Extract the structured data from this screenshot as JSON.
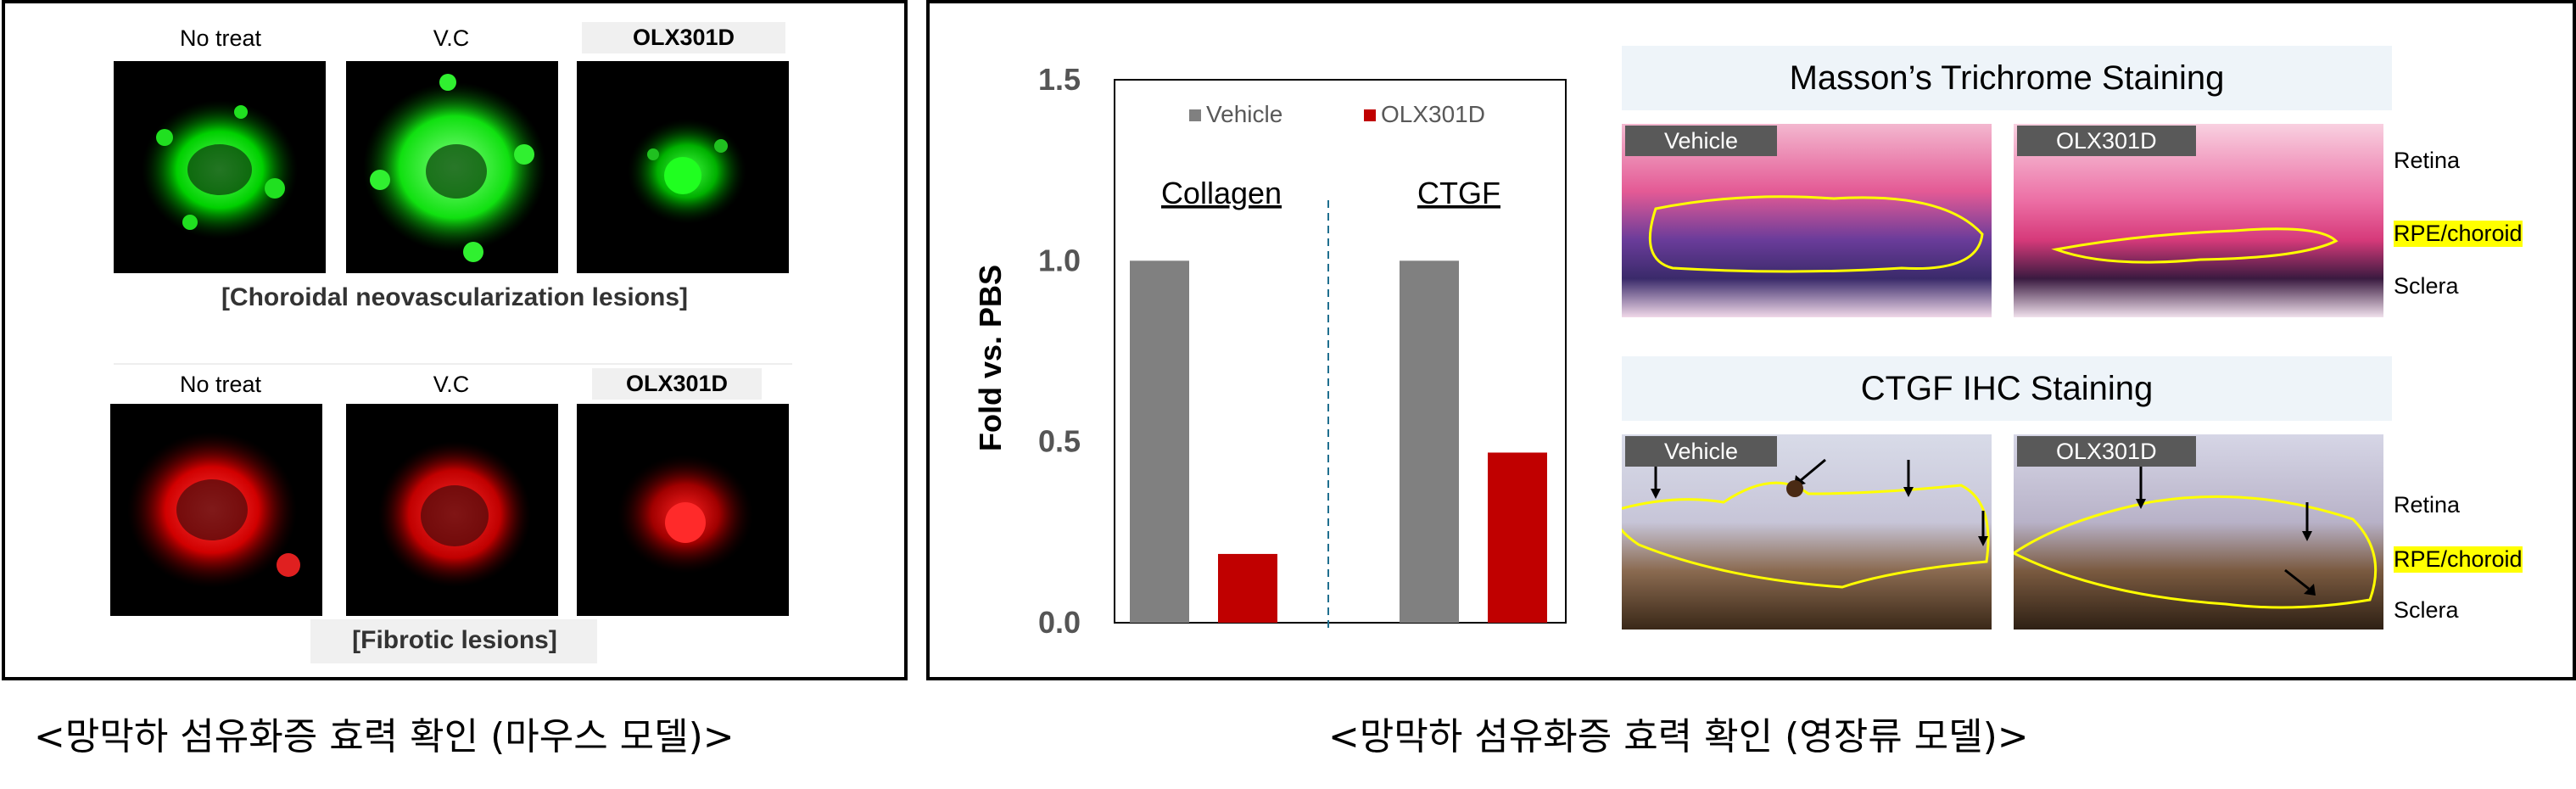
{
  "left_panel": {
    "row1": {
      "labels": [
        "No treat",
        "V.C",
        "OLX301D"
      ],
      "caption": "[Choroidal neovascularization lesions]",
      "stain_color": "#00e000"
    },
    "row2": {
      "labels": [
        "No treat",
        "V.C",
        "OLX301D"
      ],
      "caption": "[Fibrotic lesions]",
      "stain_color": "#e00000"
    },
    "bottom_caption": "<망막하 섬유화증 효력 확인 (마우스 모델)>"
  },
  "right_panel": {
    "bottom_caption": "<망막하 섬유화증 효력 확인 (영장류 모델)>"
  },
  "chart_data": {
    "type": "bar",
    "ylabel": "Fold vs. PBS",
    "ylim": [
      0,
      1.5
    ],
    "yticks": [
      "0.0",
      "0.5",
      "1.0",
      "1.5"
    ],
    "categories": [
      "Collagen",
      "CTGF"
    ],
    "series": [
      {
        "name": "Vehicle",
        "color": "#808080",
        "values": [
          1.0,
          1.0
        ]
      },
      {
        "name": "OLX301D",
        "color": "#c00000",
        "values": [
          0.19,
          0.47
        ]
      }
    ],
    "legend_position": "top",
    "divider": "dashed-vertical-between-groups"
  },
  "masson": {
    "title": "Masson’s Trichrome Staining",
    "tags": [
      "Vehicle",
      "OLX301D"
    ],
    "side_labels": [
      "Retina",
      "RPE/choroid",
      "Sclera"
    ]
  },
  "ihc": {
    "title": "CTGF IHC Staining",
    "tags": [
      "Vehicle",
      "OLX301D"
    ],
    "side_labels": [
      "Retina",
      "RPE/choroid",
      "Sclera"
    ]
  }
}
